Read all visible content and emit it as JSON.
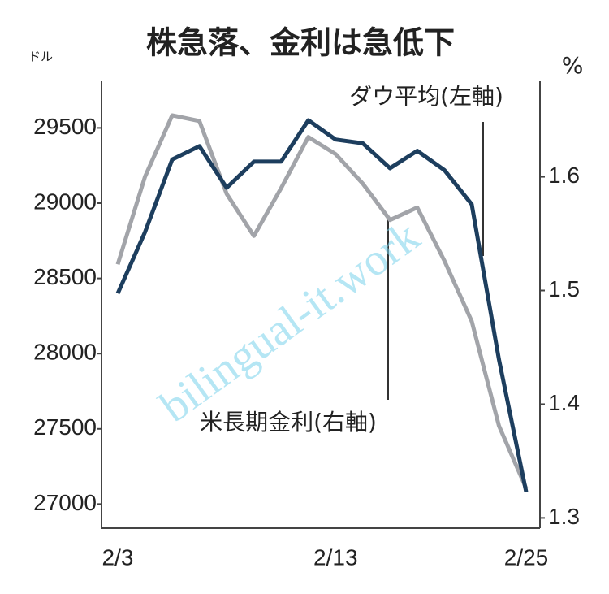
{
  "chart_data": {
    "type": "line",
    "title": "株急落、金利は急低下",
    "y_label": "ドル",
    "y2_label": "%",
    "watermark": "bilingual-it.work",
    "categories": [
      "2/3",
      null,
      null,
      null,
      null,
      null,
      null,
      null,
      "2/13",
      null,
      null,
      null,
      null,
      null,
      null,
      "2/25"
    ],
    "series": [
      {
        "name": "ダウ平均(左軸)",
        "color": "#1d3e5e",
        "axis": "y",
        "values": [
          28400,
          28807,
          29290,
          29379,
          29102,
          29276,
          29276,
          29551,
          29423,
          29398,
          29232,
          29348,
          29219,
          28992,
          27961,
          27081
        ]
      },
      {
        "name": "米長期金利(右軸)",
        "color": "#a2a4a9",
        "axis": "y2",
        "values": [
          1.523,
          1.6,
          1.654,
          1.649,
          1.585,
          1.548,
          1.59,
          1.635,
          1.62,
          1.594,
          1.562,
          1.573,
          1.526,
          1.473,
          1.381,
          1.326
        ]
      }
    ],
    "ylim": [
      26840,
      29810
    ],
    "yticks": [
      27000,
      27500,
      28000,
      28500,
      29000,
      29500
    ],
    "y2lim": [
      1.291,
      1.684
    ],
    "y2ticks": [
      1.3,
      1.4,
      1.5,
      1.6
    ]
  }
}
